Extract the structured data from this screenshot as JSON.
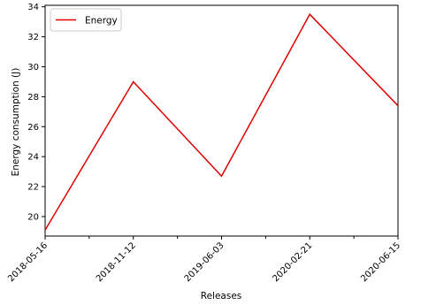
{
  "chart_data": {
    "type": "line",
    "categories": [
      "2018-05-16",
      "2018-11-12",
      "2019-06-03",
      "2020-02-21",
      "2020-06-15"
    ],
    "series": [
      {
        "name": "Energy",
        "values": [
          19.1,
          29.0,
          22.7,
          33.5,
          27.4
        ],
        "color": "#e00000"
      }
    ],
    "xlabel": "Releases",
    "ylabel": "Energy consumption (J)",
    "ylim": [
      18.7,
      34.1
    ],
    "yticks": [
      20,
      22,
      24,
      26,
      28,
      30,
      32,
      34
    ],
    "ytick_labels": [
      "20",
      "22",
      "24",
      "26",
      "28",
      "30",
      "32",
      "34"
    ],
    "minor_x_ticks_between": 1,
    "legend_position": "top-left",
    "grid": false
  }
}
